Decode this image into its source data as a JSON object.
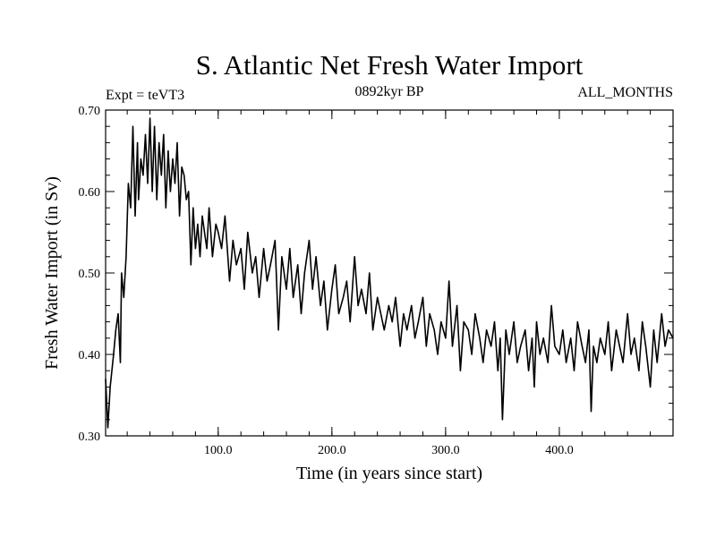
{
  "chart_data": {
    "type": "line",
    "title": "S. Atlantic Net Fresh Water Import",
    "experiment_label": "Expt = teVT3",
    "period_label": "0892kyr BP",
    "months_label": "ALL_MONTHS",
    "xlabel": "Time (in years since start)",
    "ylabel": "Fresh Water Import (in Sv)",
    "xlim": [
      1,
      500
    ],
    "ylim": [
      0.3,
      0.7
    ],
    "x_ticks": [
      100,
      200,
      300,
      400
    ],
    "x_tick_labels": [
      "100.0",
      "200.0",
      "300.0",
      "400.0"
    ],
    "y_ticks": [
      0.3,
      0.4,
      0.5,
      0.6,
      0.7
    ],
    "y_tick_labels": [
      "0.30",
      "0.40",
      "0.50",
      "0.60",
      "0.70"
    ],
    "grid": false,
    "line_color": "#000000",
    "series": [
      {
        "name": "fresh_water_import",
        "x": [
          1,
          3,
          5,
          8,
          10,
          12,
          14,
          15,
          17,
          19,
          21,
          23,
          25,
          27,
          29,
          30,
          32,
          34,
          36,
          38,
          40,
          42,
          44,
          46,
          48,
          50,
          52,
          54,
          56,
          58,
          60,
          62,
          64,
          66,
          68,
          70,
          72,
          74,
          76,
          78,
          80,
          82,
          84,
          86,
          88,
          90,
          92,
          95,
          98,
          100,
          103,
          106,
          110,
          113,
          116,
          120,
          123,
          126,
          130,
          133,
          136,
          140,
          143,
          146,
          150,
          153,
          156,
          160,
          163,
          166,
          170,
          173,
          176,
          180,
          183,
          186,
          190,
          193,
          196,
          200,
          203,
          206,
          210,
          213,
          216,
          220,
          223,
          226,
          230,
          233,
          236,
          240,
          243,
          246,
          250,
          253,
          256,
          260,
          263,
          266,
          270,
          273,
          276,
          280,
          283,
          286,
          290,
          293,
          296,
          300,
          303,
          306,
          310,
          313,
          316,
          320,
          323,
          326,
          330,
          333,
          336,
          340,
          343,
          346,
          348,
          350,
          353,
          356,
          360,
          363,
          366,
          370,
          373,
          376,
          378,
          380,
          383,
          386,
          390,
          393,
          396,
          400,
          403,
          406,
          410,
          413,
          416,
          420,
          423,
          426,
          428,
          430,
          433,
          436,
          440,
          443,
          446,
          450,
          453,
          456,
          460,
          463,
          466,
          470,
          473,
          476,
          480,
          483,
          486,
          490,
          493,
          496,
          500
        ],
        "values": [
          0.37,
          0.31,
          0.36,
          0.4,
          0.43,
          0.45,
          0.39,
          0.5,
          0.47,
          0.52,
          0.61,
          0.58,
          0.68,
          0.57,
          0.66,
          0.59,
          0.64,
          0.62,
          0.67,
          0.61,
          0.69,
          0.6,
          0.68,
          0.59,
          0.66,
          0.62,
          0.67,
          0.58,
          0.65,
          0.6,
          0.64,
          0.61,
          0.66,
          0.57,
          0.63,
          0.62,
          0.59,
          0.6,
          0.51,
          0.58,
          0.53,
          0.56,
          0.52,
          0.57,
          0.55,
          0.53,
          0.58,
          0.52,
          0.56,
          0.55,
          0.53,
          0.57,
          0.49,
          0.54,
          0.51,
          0.53,
          0.48,
          0.55,
          0.5,
          0.52,
          0.47,
          0.53,
          0.49,
          0.51,
          0.54,
          0.43,
          0.52,
          0.48,
          0.53,
          0.47,
          0.51,
          0.45,
          0.5,
          0.54,
          0.48,
          0.52,
          0.46,
          0.49,
          0.43,
          0.48,
          0.51,
          0.45,
          0.47,
          0.49,
          0.44,
          0.52,
          0.46,
          0.48,
          0.45,
          0.5,
          0.43,
          0.47,
          0.45,
          0.43,
          0.46,
          0.44,
          0.47,
          0.41,
          0.45,
          0.43,
          0.46,
          0.42,
          0.44,
          0.47,
          0.41,
          0.45,
          0.43,
          0.4,
          0.44,
          0.42,
          0.49,
          0.41,
          0.46,
          0.38,
          0.44,
          0.43,
          0.4,
          0.45,
          0.42,
          0.39,
          0.43,
          0.41,
          0.44,
          0.38,
          0.42,
          0.32,
          0.43,
          0.4,
          0.44,
          0.39,
          0.41,
          0.43,
          0.38,
          0.42,
          0.36,
          0.44,
          0.4,
          0.42,
          0.39,
          0.46,
          0.41,
          0.4,
          0.43,
          0.39,
          0.42,
          0.38,
          0.44,
          0.41,
          0.39,
          0.43,
          0.33,
          0.41,
          0.39,
          0.42,
          0.4,
          0.44,
          0.38,
          0.43,
          0.41,
          0.39,
          0.45,
          0.4,
          0.42,
          0.38,
          0.44,
          0.41,
          0.36,
          0.43,
          0.39,
          0.45,
          0.41,
          0.43,
          0.42
        ]
      }
    ]
  }
}
